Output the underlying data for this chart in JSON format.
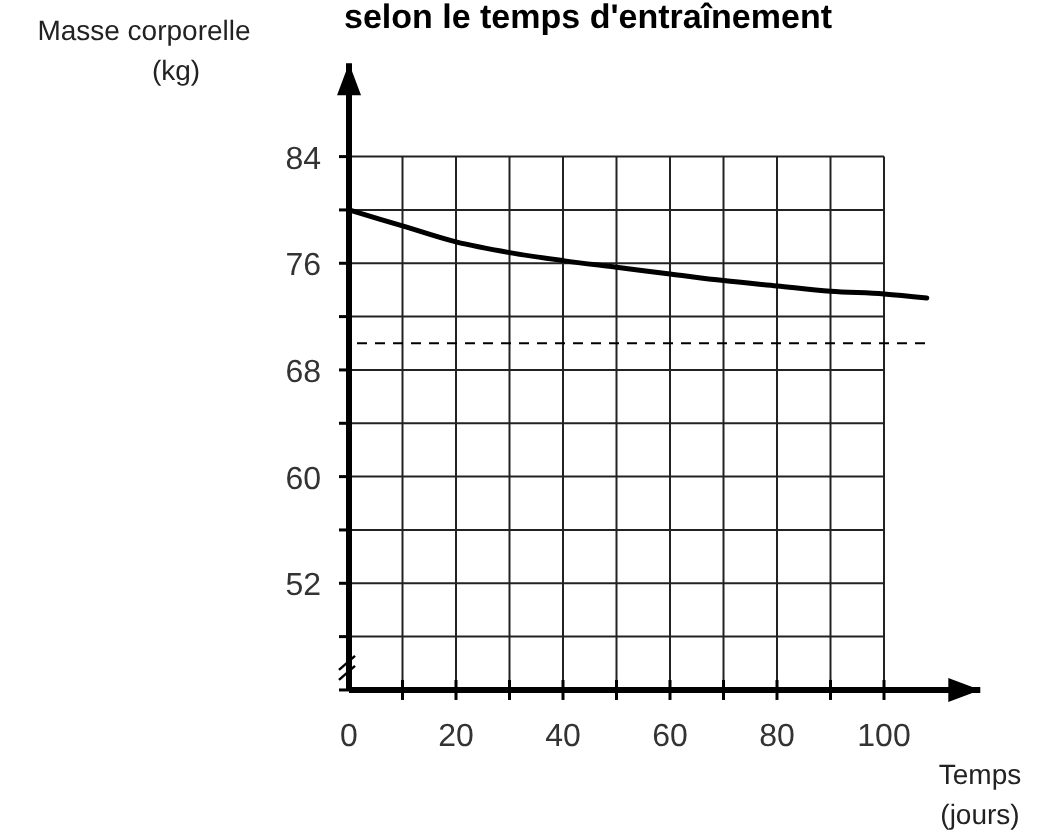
{
  "chart_data": {
    "type": "line",
    "title": "selon le temps d'entraînement",
    "xlabel": "Temps (jours)",
    "ylabel": "Masse corporelle (kg)",
    "x": [
      0,
      10,
      20,
      30,
      40,
      50,
      60,
      70,
      80,
      90,
      100,
      108
    ],
    "series": [
      {
        "color": "#000000",
        "values": [
          80,
          78.8,
          77.6,
          76.8,
          76.2,
          75.7,
          75.2,
          74.7,
          74.3,
          73.9,
          73.7,
          73.4
        ]
      }
    ],
    "xlim": [
      0,
      118
    ],
    "ylim": [
      44,
      91
    ],
    "xticks": [
      {
        "value": 0,
        "label": "0"
      },
      {
        "value": 10,
        "label": null
      },
      20,
      {
        "value": 30,
        "label": null
      },
      40,
      {
        "value": 50,
        "label": null
      },
      60,
      {
        "value": 70,
        "label": null
      },
      80,
      {
        "value": 90,
        "label": null
      },
      100
    ],
    "yticks": [
      {
        "value": 44,
        "label": null
      },
      {
        "value": 48,
        "label": null
      },
      52,
      {
        "value": 56,
        "label": null
      },
      60,
      {
        "value": 64,
        "label": null
      },
      68,
      {
        "value": 72,
        "label": null
      },
      76,
      {
        "value": 80,
        "label": null
      },
      84
    ],
    "ref_lines": [
      {
        "axis": "y",
        "value": 70,
        "color": "#000000",
        "line_style": "dashed"
      }
    ],
    "grid": true,
    "marker": "none",
    "line_style": "solid"
  }
}
